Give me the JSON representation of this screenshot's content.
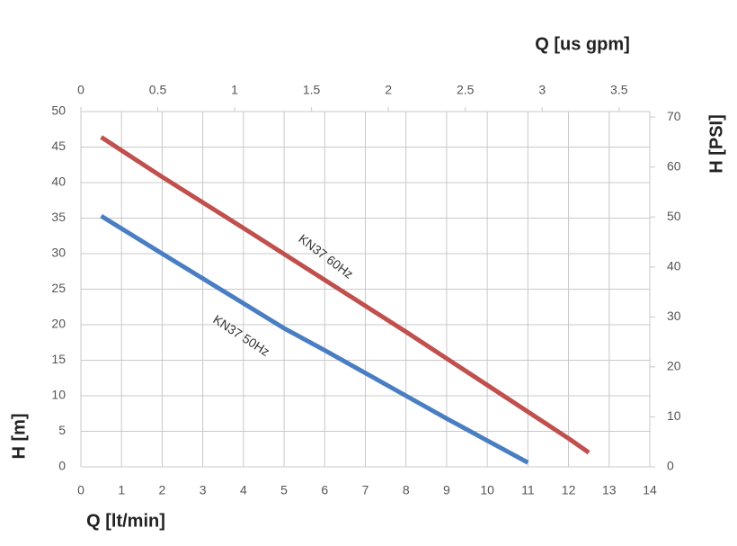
{
  "chart_data": {
    "type": "line",
    "xlabel": "Q [lt/min]",
    "ylabel": "H [m]",
    "x2label": "Q [us gpm]",
    "y2label": "H [PSI]",
    "xlim": [
      0,
      14
    ],
    "xticks": [
      0,
      1,
      2,
      3,
      4,
      5,
      6,
      7,
      8,
      9,
      10,
      11,
      12,
      13,
      14
    ],
    "ylim": [
      0,
      50
    ],
    "yticks": [
      0,
      5,
      10,
      15,
      20,
      25,
      30,
      35,
      40,
      45,
      50
    ],
    "x2lim": [
      0,
      3.7
    ],
    "x2ticks": [
      0,
      0.5,
      1,
      1.5,
      2,
      2.5,
      3,
      3.5
    ],
    "y2lim": [
      0,
      71.1
    ],
    "y2ticks": [
      0,
      10,
      20,
      30,
      40,
      50,
      60,
      70
    ],
    "grid": true,
    "series": [
      {
        "name": "KN37 50Hz",
        "color": "#4a7ec2",
        "x": [
          0.5,
          2,
          3,
          4,
          5,
          6,
          7,
          8,
          9,
          10,
          11
        ],
        "values": [
          35.3,
          30,
          26.5,
          23,
          19.5,
          16.4,
          13.2,
          10,
          6.8,
          3.7,
          0.6
        ]
      },
      {
        "name": "KN37 60Hz",
        "color": "#c0504d",
        "x": [
          0.5,
          2,
          4,
          6,
          8,
          10,
          12,
          12.5
        ],
        "values": [
          46.4,
          40.8,
          33.6,
          26.3,
          19,
          11.5,
          4,
          2
        ]
      }
    ],
    "annotations": [
      "KN37 60Hz",
      "KN37 50Hz"
    ]
  }
}
